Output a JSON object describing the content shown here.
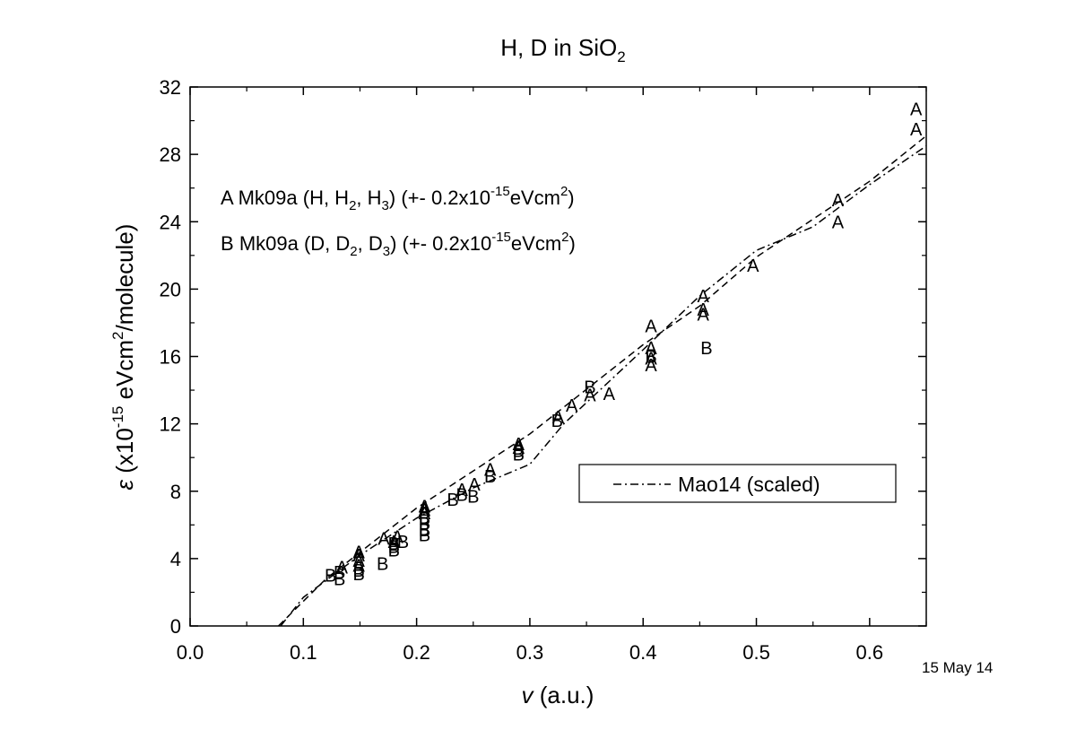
{
  "chart_data": {
    "type": "scatter",
    "title": "H, D in SiO",
    "title_sub": "2",
    "xlabel_var": "v",
    "xlabel_unit": " (a.u.)",
    "ylabel_var": "ε",
    "ylabel_unit": "(x10",
    "ylabel_exp": "-15",
    "ylabel_mid": " eVcm",
    "ylabel_exp2": "2",
    "ylabel_tail": "/molecule)",
    "date_stamp": "15 May 14",
    "xlim": [
      0.0,
      0.65
    ],
    "ylim": [
      0,
      32
    ],
    "x_ticks": [
      "0.0",
      "0.1",
      "0.2",
      "0.3",
      "0.4",
      "0.5",
      "0.6"
    ],
    "x_tick_values": [
      0.0,
      0.1,
      0.2,
      0.3,
      0.4,
      0.5,
      0.6
    ],
    "y_ticks": [
      "0",
      "4",
      "8",
      "12",
      "16",
      "20",
      "24",
      "28",
      "32"
    ],
    "y_tick_values": [
      0,
      4,
      8,
      12,
      16,
      20,
      24,
      28,
      32
    ],
    "annotations": [
      {
        "symbol": "A",
        "label": "Mk09a (H, H",
        "sub1": "2",
        "mid": ", H",
        "sub2": "3",
        "tail": ") (+- 0.2x10",
        "sup1": "-15",
        "tail2": "eVcm",
        "sup2": "2",
        "end": ")"
      },
      {
        "symbol": "B",
        "label": "Mk09a (D, D",
        "sub1": "2",
        "mid": ", D",
        "sub2": "3",
        "tail": ") (+- 0.2x10",
        "sup1": "-15",
        "tail2": "eVcm",
        "sup2": "2",
        "end": ")"
      }
    ],
    "legend": {
      "entries": [
        "Mao14 (scaled)"
      ],
      "position": "lower-right"
    },
    "series": [
      {
        "symbol": "A",
        "points": [
          [
            0.134,
            3.5
          ],
          [
            0.149,
            4.4
          ],
          [
            0.149,
            4.2
          ],
          [
            0.149,
            3.9
          ],
          [
            0.149,
            3.6
          ],
          [
            0.171,
            5.2
          ],
          [
            0.18,
            5.0
          ],
          [
            0.183,
            5.3
          ],
          [
            0.207,
            7.1
          ],
          [
            0.207,
            6.9
          ],
          [
            0.207,
            6.7
          ],
          [
            0.24,
            8.1
          ],
          [
            0.251,
            8.4
          ],
          [
            0.265,
            9.3
          ],
          [
            0.29,
            10.8
          ],
          [
            0.29,
            10.6
          ],
          [
            0.325,
            12.4
          ],
          [
            0.337,
            13.1
          ],
          [
            0.353,
            13.7
          ],
          [
            0.37,
            13.8
          ],
          [
            0.407,
            17.8
          ],
          [
            0.407,
            16.5
          ],
          [
            0.407,
            15.9
          ],
          [
            0.407,
            15.5
          ],
          [
            0.453,
            19.6
          ],
          [
            0.453,
            18.8
          ],
          [
            0.453,
            18.5
          ],
          [
            0.497,
            21.4
          ],
          [
            0.572,
            25.3
          ],
          [
            0.572,
            24.0
          ],
          [
            0.641,
            30.7
          ],
          [
            0.641,
            29.5
          ]
        ]
      },
      {
        "symbol": "B",
        "points": [
          [
            0.124,
            3.0
          ],
          [
            0.132,
            3.2
          ],
          [
            0.132,
            2.8
          ],
          [
            0.149,
            3.3
          ],
          [
            0.149,
            3.1
          ],
          [
            0.17,
            3.7
          ],
          [
            0.18,
            4.9
          ],
          [
            0.18,
            4.7
          ],
          [
            0.18,
            4.5
          ],
          [
            0.188,
            5.0
          ],
          [
            0.207,
            6.4
          ],
          [
            0.207,
            6.1
          ],
          [
            0.207,
            5.7
          ],
          [
            0.207,
            5.4
          ],
          [
            0.232,
            7.5
          ],
          [
            0.24,
            7.8
          ],
          [
            0.25,
            7.7
          ],
          [
            0.265,
            8.9
          ],
          [
            0.29,
            10.4
          ],
          [
            0.29,
            10.2
          ],
          [
            0.324,
            12.2
          ],
          [
            0.353,
            14.2
          ],
          [
            0.407,
            16.0
          ],
          [
            0.456,
            16.5
          ]
        ]
      },
      {
        "name": "Mao14 (scaled)",
        "style": "dash-dot",
        "points": [
          [
            0.08,
            0.0
          ],
          [
            0.1,
            1.7
          ],
          [
            0.15,
            4.2
          ],
          [
            0.2,
            6.4
          ],
          [
            0.25,
            8.2
          ],
          [
            0.3,
            9.6
          ],
          [
            0.33,
            12.0
          ],
          [
            0.4,
            16.4
          ],
          [
            0.45,
            19.6
          ],
          [
            0.5,
            22.3
          ],
          [
            0.55,
            23.7
          ],
          [
            0.6,
            26.2
          ],
          [
            0.65,
            28.5
          ]
        ]
      },
      {
        "style": "dashed",
        "points": [
          [
            0.078,
            0.0
          ],
          [
            0.12,
            2.8
          ],
          [
            0.2,
            7.0
          ],
          [
            0.3,
            11.4
          ],
          [
            0.4,
            16.7
          ],
          [
            0.45,
            19.0
          ],
          [
            0.5,
            21.9
          ],
          [
            0.6,
            26.4
          ],
          [
            0.65,
            29.1
          ]
        ]
      }
    ]
  }
}
